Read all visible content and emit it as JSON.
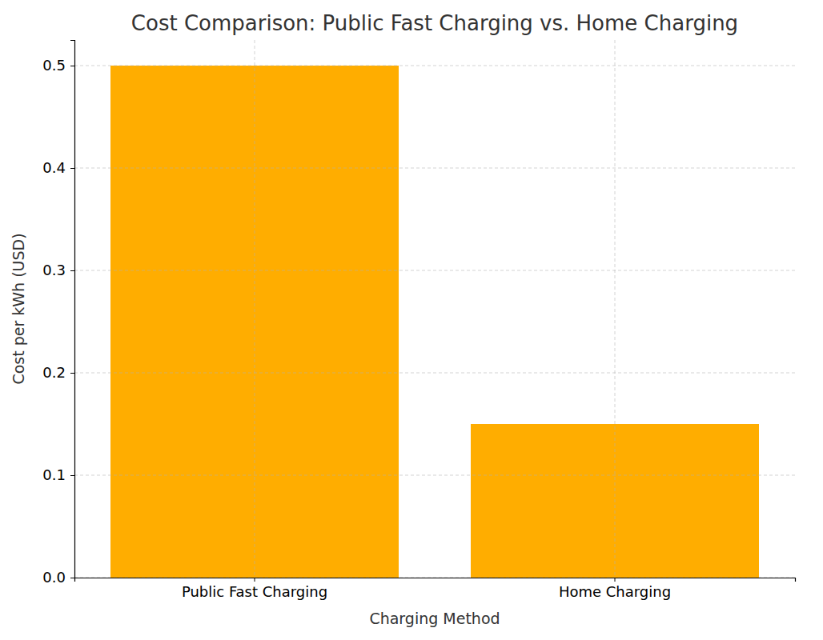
{
  "chart_data": {
    "type": "bar",
    "title": "Cost Comparison: Public Fast Charging vs. Home Charging",
    "x_label": "Charging Method",
    "y_label": "Cost per kWh (USD)",
    "categories": [
      "Public Fast Charging",
      "Home Charging"
    ],
    "values": [
      0.5,
      0.15
    ],
    "color": "#ffad00",
    "ylim": [
      0,
      0.525
    ],
    "yticks": [
      {
        "value": 0,
        "label": "0.0"
      },
      0.1,
      0.2,
      0.3,
      0.4,
      0.5
    ],
    "grid": true
  }
}
